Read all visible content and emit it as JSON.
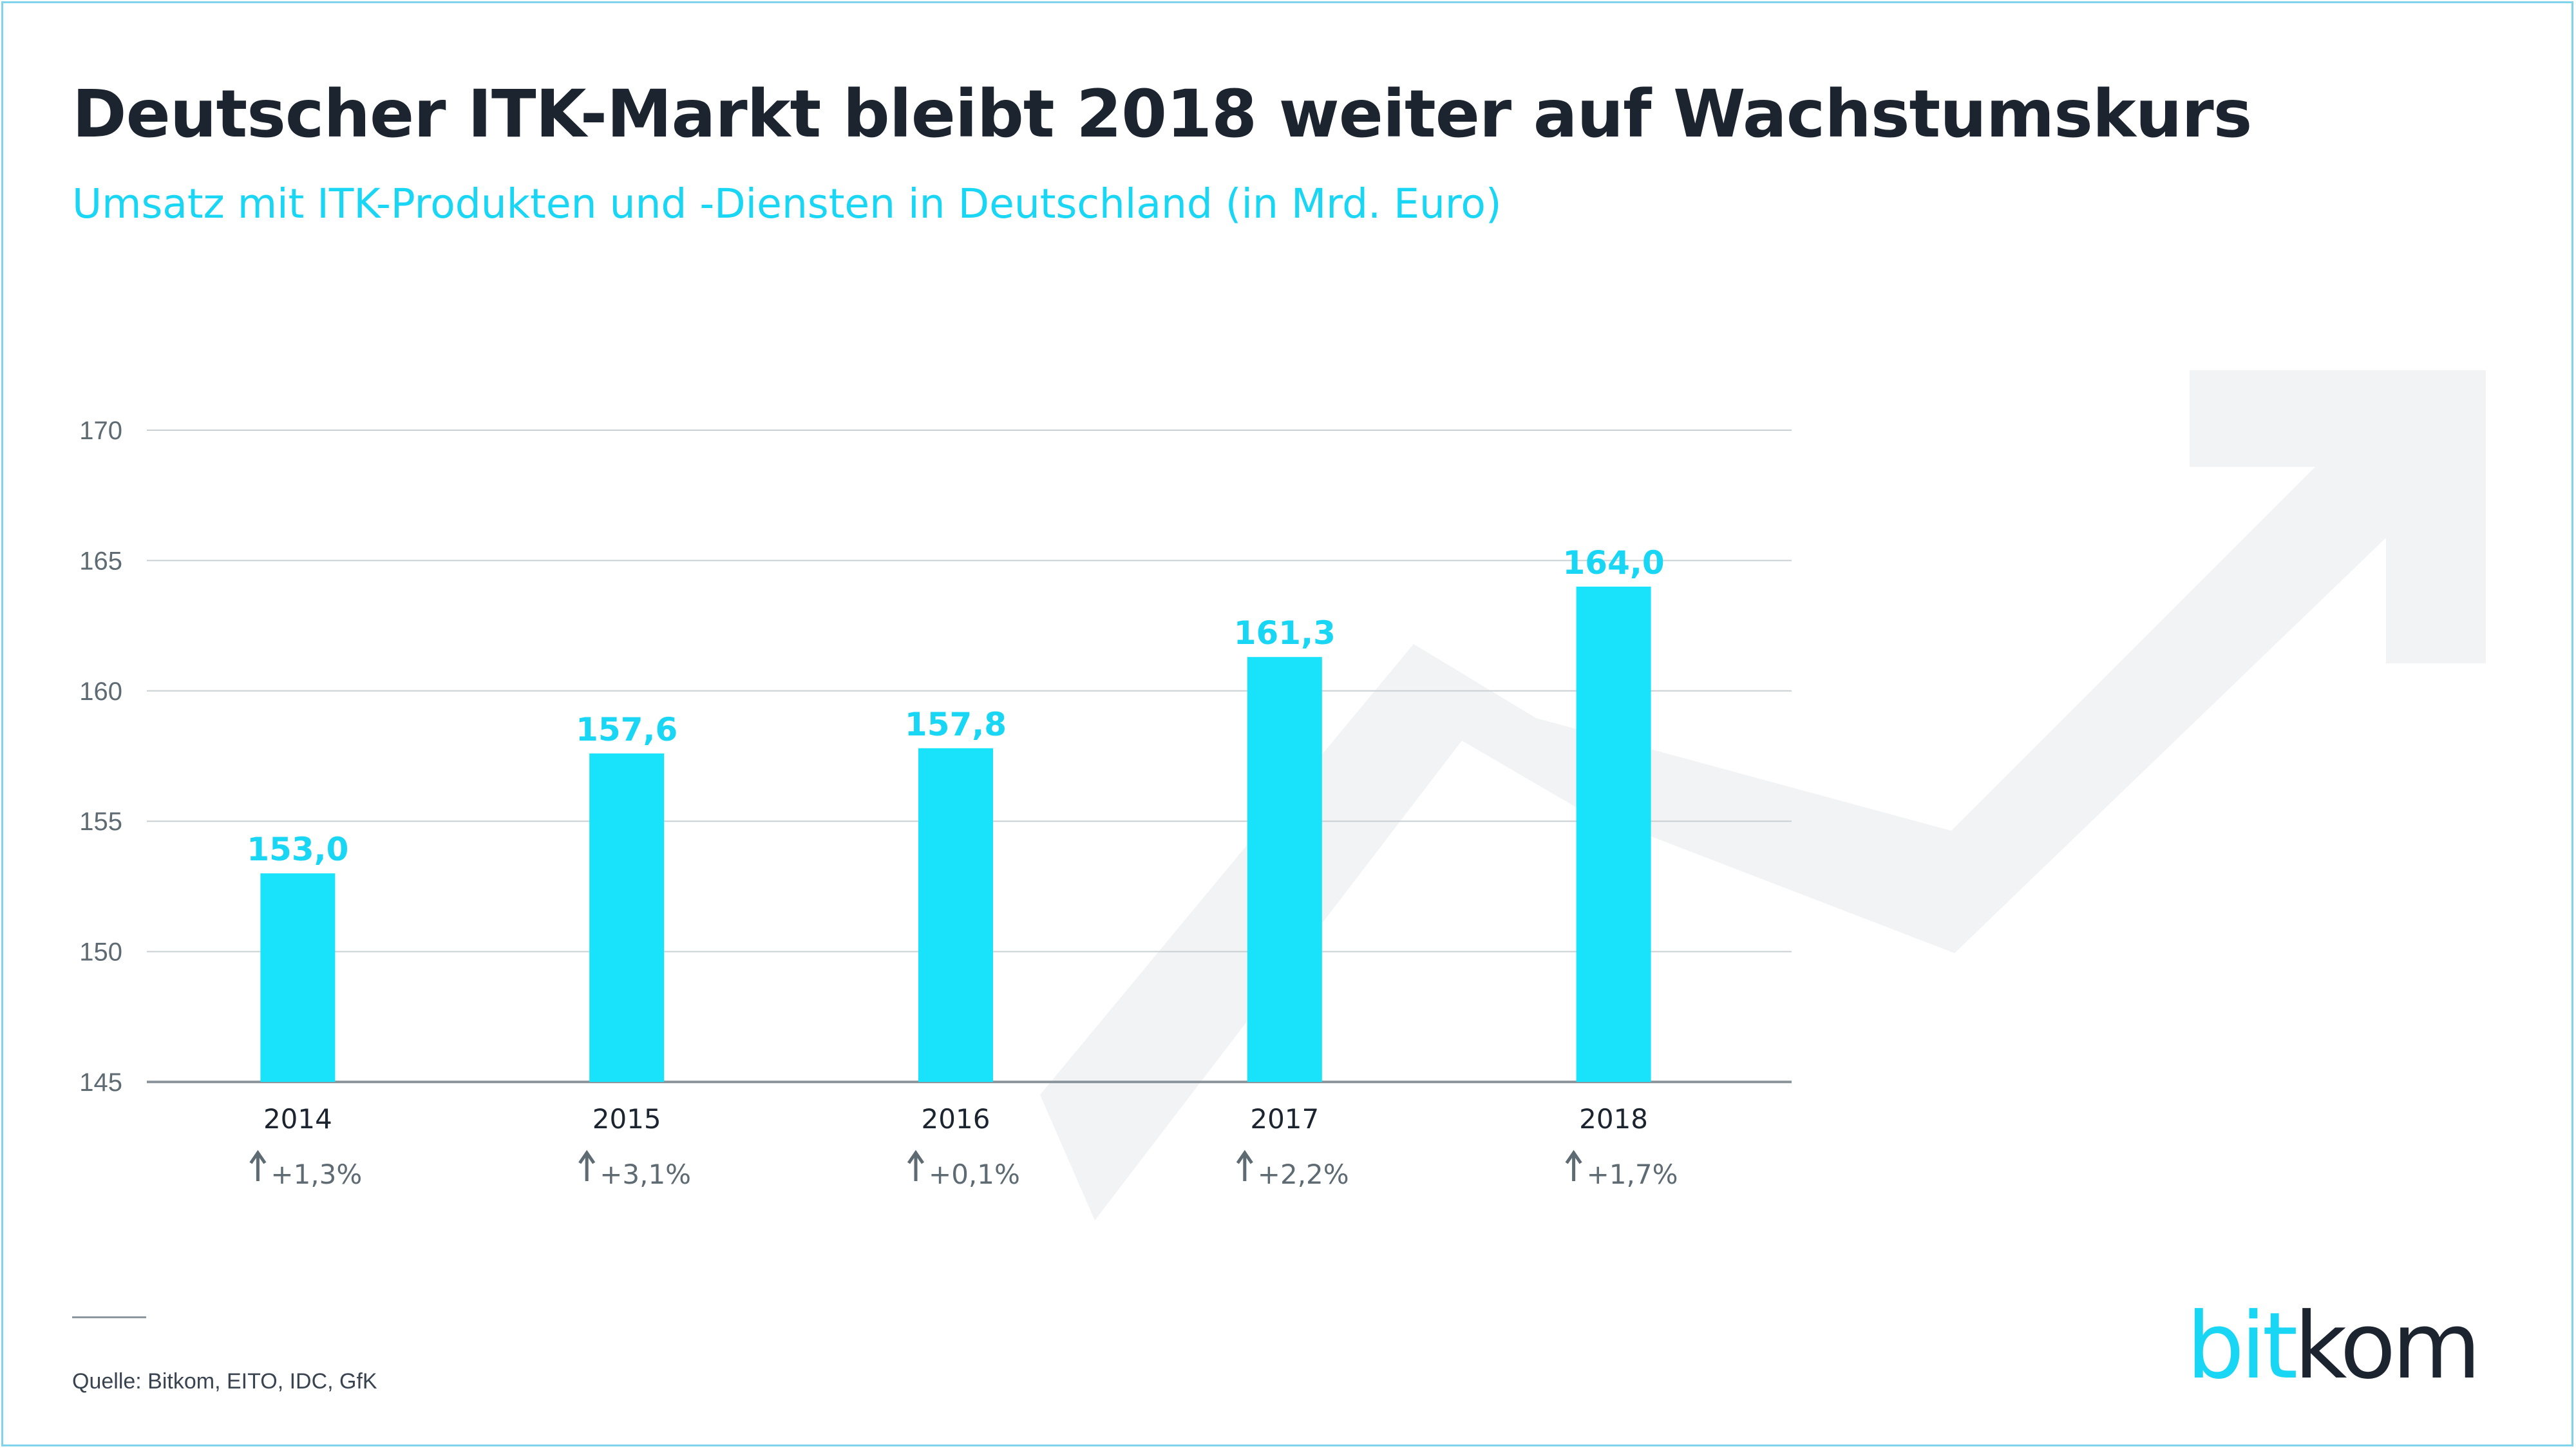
{
  "header": {
    "title": "Deutscher ITK-Markt bleibt 2018 weiter auf Wachstumskurs",
    "subtitle": "Umsatz mit ITK-Produkten und -Diensten in Deutschland (in Mrd. Euro)"
  },
  "footer": {
    "source": "Quelle: Bitkom, EITO, IDC, GfK",
    "logo_part1": "bit",
    "logo_part2": "kom"
  },
  "colors": {
    "bar": "#19e3fb",
    "value_label": "#19d6f5",
    "title": "#1c2430",
    "grid": "#c9d0d4",
    "axis_text": "#5f6b73",
    "arrow_watermark": "#f2f3f4"
  },
  "chart_data": {
    "type": "bar",
    "categories": [
      "2014",
      "2015",
      "2016",
      "2017",
      "2018"
    ],
    "values": [
      153.0,
      157.6,
      157.8,
      161.3,
      164.0
    ],
    "value_labels": [
      "153,0",
      "157,6",
      "157,8",
      "161,3",
      "164,0"
    ],
    "growth_labels": [
      "+1,3%",
      "+3,1%",
      "+0,1%",
      "+2,2%",
      "+1,7%"
    ],
    "growth_icon": "arrow-up-icon",
    "title": "Deutscher ITK-Markt bleibt 2018 weiter auf Wachstumskurs",
    "subtitle": "Umsatz mit ITK-Produkten und -Diensten in Deutschland (in Mrd. Euro)",
    "xlabel": "",
    "ylabel": "",
    "ylim": [
      145,
      170
    ],
    "yticks": [
      145,
      150,
      155,
      160,
      165,
      170
    ],
    "grid": true,
    "legend": "none",
    "background_icon": "trend-arrow-icon"
  }
}
